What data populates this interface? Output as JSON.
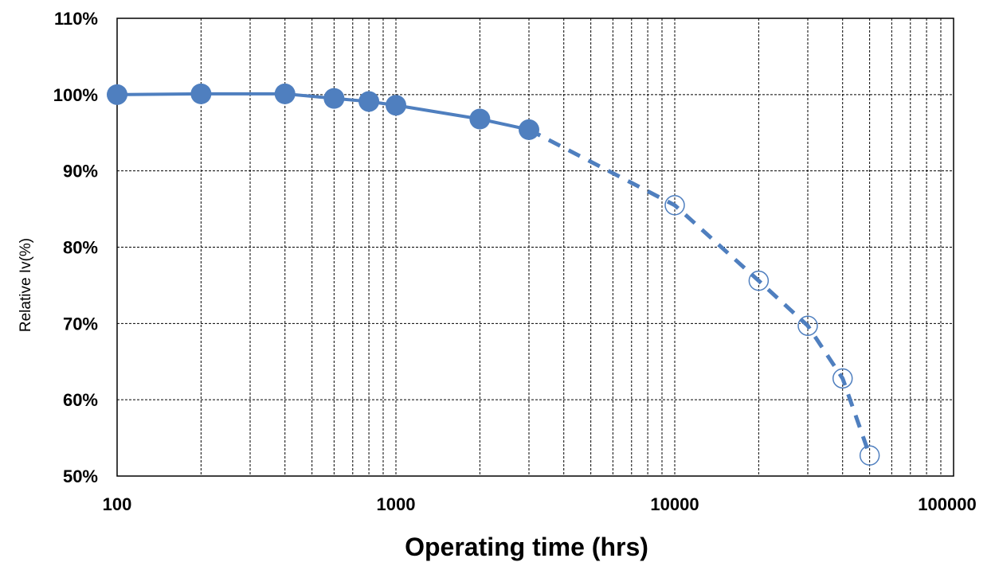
{
  "colors": {
    "series": "#4f7fbf",
    "grid": "#000000",
    "background": "#ffffff"
  },
  "chart_data": {
    "type": "line",
    "title": "",
    "xlabel": "Operating time (hrs)",
    "ylabel": "Relative Iv(%)",
    "x_scale": "log",
    "xlim": [
      100,
      100000
    ],
    "ylim": [
      50,
      110
    ],
    "x_ticks": [
      100,
      1000,
      10000,
      100000
    ],
    "x_tick_labels": [
      "100",
      "1000",
      "10000",
      "100000"
    ],
    "y_ticks": [
      50,
      60,
      70,
      80,
      90,
      100,
      110
    ],
    "y_tick_labels": [
      "50%",
      "60%",
      "70%",
      "80%",
      "90%",
      "100%",
      "110%"
    ],
    "grid": true,
    "legend": "none",
    "series": [
      {
        "style": "solid-line-filled-markers",
        "x": [
          100,
          200,
          400,
          600,
          800,
          1000,
          2000,
          3000
        ],
        "y": [
          100,
          100.1,
          100.1,
          99.5,
          99.1,
          98.6,
          96.8,
          95.4
        ]
      },
      {
        "style": "dashed-line-open-markers",
        "x": [
          10000,
          20000,
          30000,
          40000,
          50000
        ],
        "y": [
          85.5,
          75.6,
          69.7,
          62.8,
          52.7
        ]
      }
    ]
  }
}
